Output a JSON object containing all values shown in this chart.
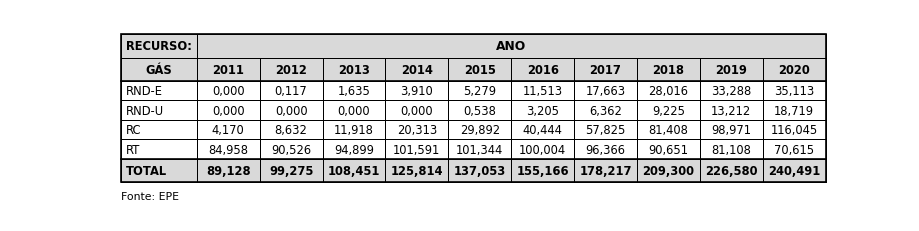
{
  "header_row1": [
    "RECURSO:",
    "ANO"
  ],
  "header_row2": [
    "GÁS",
    "2011",
    "2012",
    "2013",
    "2014",
    "2015",
    "2016",
    "2017",
    "2018",
    "2019",
    "2020"
  ],
  "rows": [
    [
      "RND-E",
      "0,000",
      "0,117",
      "1,635",
      "3,910",
      "5,279",
      "11,513",
      "17,663",
      "28,016",
      "33,288",
      "35,113"
    ],
    [
      "RND-U",
      "0,000",
      "0,000",
      "0,000",
      "0,000",
      "0,538",
      "3,205",
      "6,362",
      "9,225",
      "13,212",
      "18,719"
    ],
    [
      "RC",
      "4,170",
      "8,632",
      "11,918",
      "20,313",
      "29,892",
      "40,444",
      "57,825",
      "81,408",
      "98,971",
      "116,045"
    ],
    [
      "RT",
      "84,958",
      "90,526",
      "94,899",
      "101,591",
      "101,344",
      "100,004",
      "96,366",
      "90,651",
      "81,108",
      "70,615"
    ]
  ],
  "total_row": [
    "TOTAL",
    "89,128",
    "99,275",
    "108,451",
    "125,814",
    "137,053",
    "155,166",
    "178,217",
    "209,300",
    "226,580",
    "240,491"
  ],
  "footnote": "Fonte: EPE",
  "header_bg": "#d9d9d9",
  "border_color": "#000000",
  "fig_width": 9.19,
  "fig_height": 2.32
}
